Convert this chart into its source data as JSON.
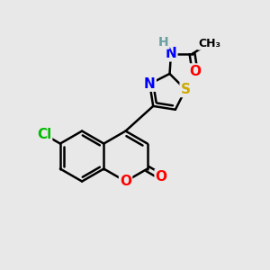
{
  "background_color": "#e8e8e8",
  "atom_colors": {
    "C": "#000000",
    "H": "#6aa0a0",
    "N": "#0000ff",
    "O": "#ff0000",
    "S": "#ccaa00",
    "Cl": "#00bb00"
  },
  "bond_color": "#000000",
  "bond_width": 1.8,
  "font_size": 10,
  "fig_size": [
    3.0,
    3.0
  ],
  "dpi": 100
}
